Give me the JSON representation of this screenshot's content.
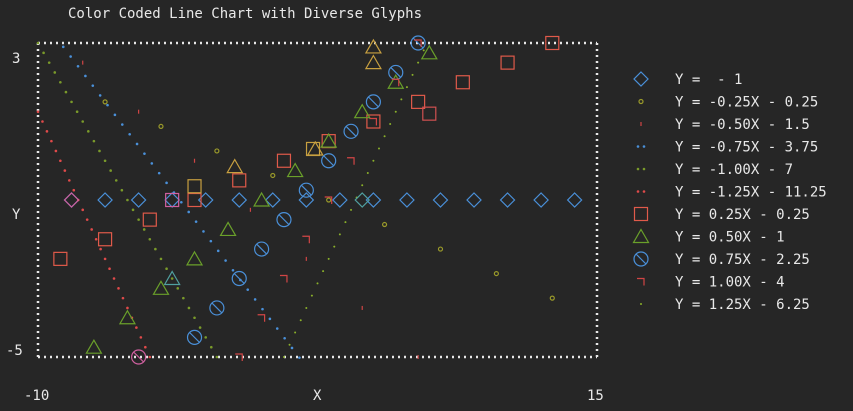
{
  "chart_data": {
    "type": "line",
    "title": "Color Coded Line Chart with Diverse Glyphs",
    "xlabel": "X",
    "ylabel": "Y",
    "xlim": [
      -10,
      15
    ],
    "ylim": [
      -5,
      3
    ],
    "x_ticks": [
      "-10",
      "15"
    ],
    "y_ticks": [
      "3",
      "-5"
    ],
    "legend_placement": "right",
    "x": [
      -9,
      -8.5,
      -8,
      -7.5,
      -7,
      -6.5,
      -6,
      -5.5,
      -5,
      -4.5,
      -4,
      -3.5,
      -3,
      -2.5,
      -2,
      -1.5,
      -1,
      -0.5,
      0,
      0.5,
      1,
      1.5,
      2,
      2.5,
      3,
      3.5,
      4,
      4.5,
      5,
      5.5,
      6,
      6.5,
      7,
      7.5,
      8,
      8.5,
      9,
      9.5,
      10,
      10.5,
      11,
      11.5,
      12,
      12.5,
      13,
      13.5,
      14,
      14.5
    ],
    "series": [
      {
        "name": "Y =  - 1",
        "slope": 0,
        "intercept": -1,
        "color": "#4a90d9",
        "glyph": "diamond",
        "step": 1.5,
        "start": -8.5
      },
      {
        "name": "Y = -0.25X - 0.25",
        "slope": -0.25,
        "intercept": -0.25,
        "color": "#9a9a2a",
        "glyph": "small-circle",
        "step": 2.5,
        "start": -7
      },
      {
        "name": "Y = -0.50X - 1.5",
        "slope": -0.5,
        "intercept": -1.5,
        "color": "#d14545",
        "glyph": "tick",
        "step": 2.5,
        "start": -8
      },
      {
        "name": "Y = -0.75X - 3.75",
        "slope": -0.75,
        "intercept": -3.75,
        "color": "#4a90d9",
        "glyph": "dots",
        "step": 0.33,
        "start": -9.2
      },
      {
        "name": "Y = -1.00X - 7",
        "slope": -1,
        "intercept": -7,
        "color": "#7a9a2a",
        "glyph": "dots",
        "step": 0.25,
        "start": -10
      },
      {
        "name": "Y = -1.25X - 11.25",
        "slope": -1.25,
        "intercept": -11.25,
        "color": "#e04a4a",
        "glyph": "dots",
        "step": 0.2,
        "start": -10
      },
      {
        "name": "Y = 0.25X - 0.25",
        "slope": 0.25,
        "intercept": -0.25,
        "color": "#e05a4a",
        "glyph": "square",
        "step": 2,
        "start": -9
      },
      {
        "name": "Y = 0.50X - 1",
        "slope": 0.5,
        "intercept": -1,
        "color": "#6aa02a",
        "glyph": "triangle",
        "step": 1.5,
        "start": -9
      },
      {
        "name": "Y = 0.75X - 2.25",
        "slope": 0.75,
        "intercept": -2.25,
        "color": "#4a90d9",
        "glyph": "circle-slash",
        "step": 1,
        "start": -6
      },
      {
        "name": "Y = 1.00X - 4",
        "slope": 1,
        "intercept": -4,
        "color": "#d14545",
        "glyph": "corner",
        "step": 1,
        "start": -4
      },
      {
        "name": "Y = 1.25X - 6.25",
        "slope": 1.25,
        "intercept": -6.25,
        "color": "#8ab02a",
        "glyph": "small-dot",
        "step": 0.25,
        "start": -2.5
      }
    ],
    "overlay_marks": [
      {
        "glyph": "square",
        "color": "#c8a040",
        "x": -3,
        "y": -0.65
      },
      {
        "glyph": "square",
        "color": "#c8a040",
        "x": 2.3,
        "y": 0.3
      },
      {
        "glyph": "triangle",
        "color": "#c8a040",
        "x": -1.2,
        "y": -0.15
      },
      {
        "glyph": "triangle",
        "color": "#c8a040",
        "x": 2.4,
        "y": 0.3
      },
      {
        "glyph": "triangle",
        "color": "#c8a040",
        "x": 5,
        "y": 2.9
      },
      {
        "glyph": "triangle",
        "color": "#c8a040",
        "x": 5,
        "y": 2.5
      },
      {
        "glyph": "diamond",
        "color": "#d060a0",
        "x": -8.5,
        "y": -1
      },
      {
        "glyph": "square",
        "color": "#d060a0",
        "x": -4,
        "y": -1
      },
      {
        "glyph": "circle-slash",
        "color": "#d060a0",
        "x": -5.5,
        "y": -5
      },
      {
        "glyph": "diamond",
        "color": "#50a0a0",
        "x": 4.5,
        "y": -1
      },
      {
        "glyph": "triangle",
        "color": "#50a0a0",
        "x": -4,
        "y": -3
      },
      {
        "glyph": "square",
        "color": "#d05050",
        "x": 7.5,
        "y": 1.2
      }
    ]
  }
}
